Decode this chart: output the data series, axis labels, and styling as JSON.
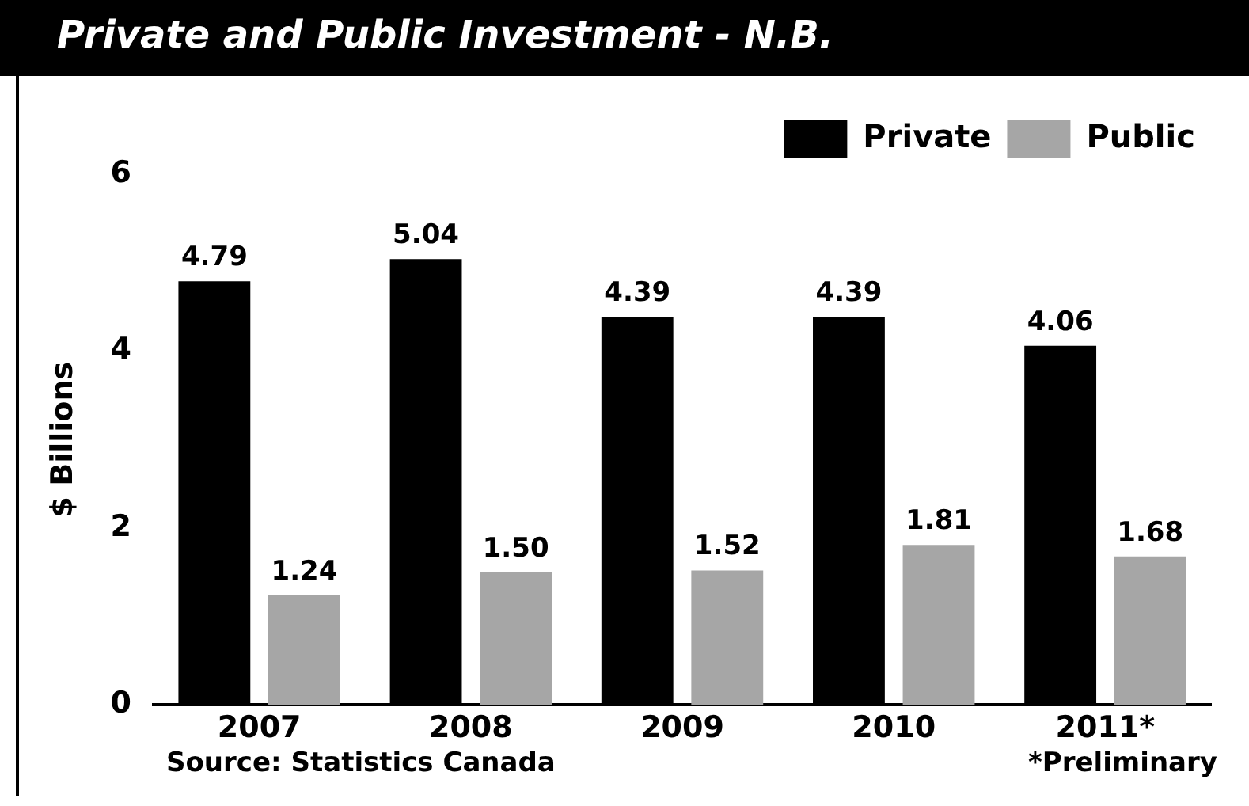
{
  "chart_data": {
    "type": "bar",
    "title": "Private and Public Investment - N.B.",
    "ylabel": "$ Billions",
    "categories": [
      "2007",
      "2008",
      "2009",
      "2010",
      "2011*"
    ],
    "series": [
      {
        "name": "Private",
        "color": "#000000",
        "values": [
          4.79,
          5.04,
          4.39,
          4.39,
          4.06
        ],
        "value_labels": [
          "4.79",
          "5.04",
          "4.39",
          "4.39",
          "4.06"
        ]
      },
      {
        "name": "Public",
        "color": "#a6a6a6",
        "values": [
          1.24,
          1.5,
          1.52,
          1.81,
          1.68
        ],
        "value_labels": [
          "1.24",
          "1.50",
          "1.52",
          "1.81",
          "1.68"
        ]
      }
    ],
    "ylim": [
      0,
      6
    ],
    "yticks": [
      0,
      2,
      4,
      6
    ],
    "grid": false,
    "legend": "top right",
    "annotations": [
      "Source:  Statistics Canada",
      "*Preliminary"
    ]
  }
}
